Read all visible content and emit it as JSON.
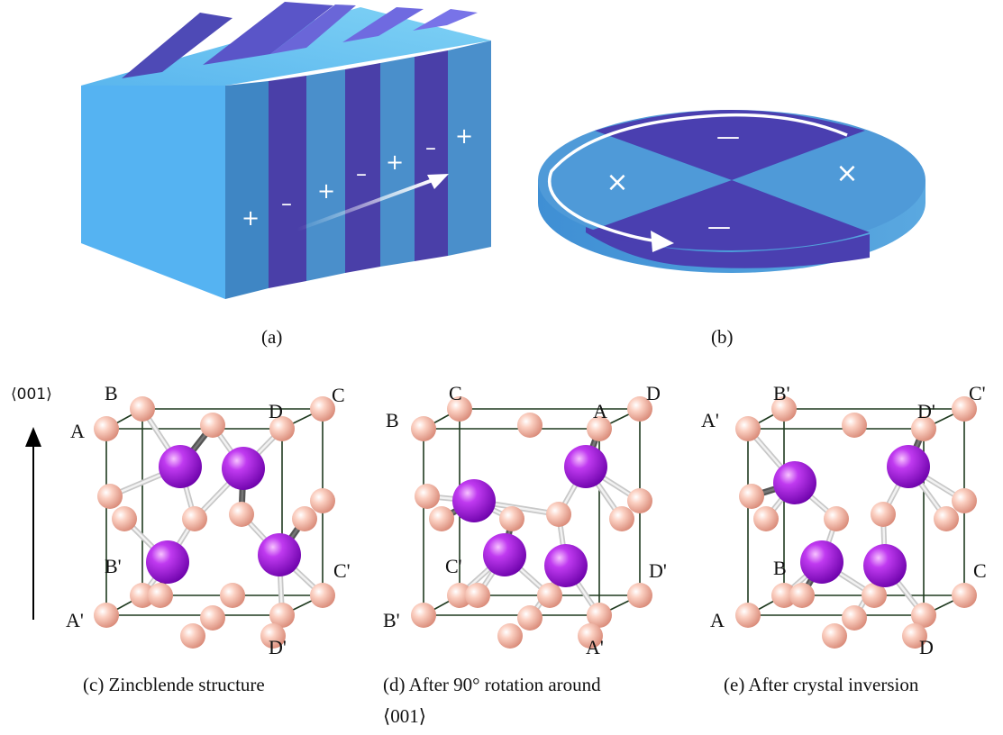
{
  "colors": {
    "light_blue": "#4fb0ea",
    "dark_blue": "#4a3fb0",
    "atom_pink": "#f5b0a0",
    "atom_purple": "#9a10d8",
    "frame_line": "#1f3a1f"
  },
  "panel_a": {
    "signs": [
      "+",
      "–",
      "+",
      "–",
      "+",
      "–",
      "+"
    ],
    "caption": "(a)"
  },
  "panel_b": {
    "signs": [
      "—",
      "×",
      "×",
      "—"
    ],
    "caption": "(b)"
  },
  "axis": {
    "label": "⟨001⟩"
  },
  "panel_c": {
    "labels": {
      "A": "A",
      "B": "B",
      "C": "C",
      "D": "D",
      "A2": "A'",
      "B2": "B'",
      "C2": "C'",
      "D2": "D'"
    },
    "caption": "(c)  Zincblende structure"
  },
  "panel_d": {
    "labels": {
      "A": "A",
      "B": "B",
      "C": "C",
      "D": "D",
      "A2": "A'",
      "B2": "B'",
      "C2": "C'",
      "D2": "D'"
    },
    "caption_line1": "(d)  After 90° rotation around",
    "caption_line2": "⟨001⟩"
  },
  "panel_e": {
    "labels": {
      "A": "A",
      "B": "B",
      "C": "C",
      "D": "D",
      "A2": "A'",
      "B2": "B'",
      "C2": "C'",
      "D2": "D'"
    },
    "caption": "(e)  After crystal inversion"
  }
}
